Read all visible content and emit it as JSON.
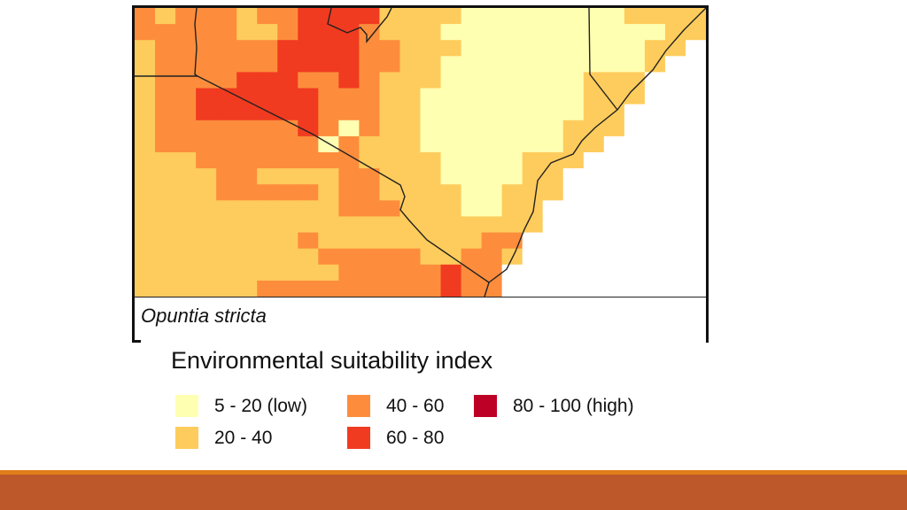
{
  "map": {
    "species_caption": "Opuntia stricta",
    "colors": {
      "0": "#ffffff",
      "1": "#ffffb2",
      "2": "#fecc5c",
      "3": "#fd8d3c",
      "4": "#f03b20",
      "5": "#bd0026"
    },
    "grid": [
      "3233323344442222111111112222",
      "3333322344432221111111111122",
      "2333333444433222111111111220",
      "2333333444433221111111111200",
      "2333344433432221111111222000",
      "2334444443332211111111222000",
      "2334444443332211111111220000",
      "2333333343132211111112220000",
      "2333333331322211111112200000",
      "2223333333322221111222000000",
      "2222332222332221111220000000",
      "2222333332332222112220000000",
      "2222222222333222112200000000",
      "2222222222222222222200000000",
      "2222222232222222233000000000",
      "2222222223333322332000000000",
      "2222222222333334330000000000",
      "2222223333333334330000000000"
    ]
  },
  "legend": {
    "title": "Environmental suitability index",
    "items": [
      {
        "label": "5 - 20 (low)",
        "color": "#ffffb2"
      },
      {
        "label": "40 - 60",
        "color": "#fd8d3c"
      },
      {
        "label": "80 - 100 (high)",
        "color": "#bd0026"
      },
      {
        "label": "20 - 40",
        "color": "#fecc5c"
      },
      {
        "label": "60 - 80",
        "color": "#f03b20"
      }
    ]
  },
  "footer": {
    "stripe_color": "#e07e1a",
    "band_color": "#bd582b"
  }
}
